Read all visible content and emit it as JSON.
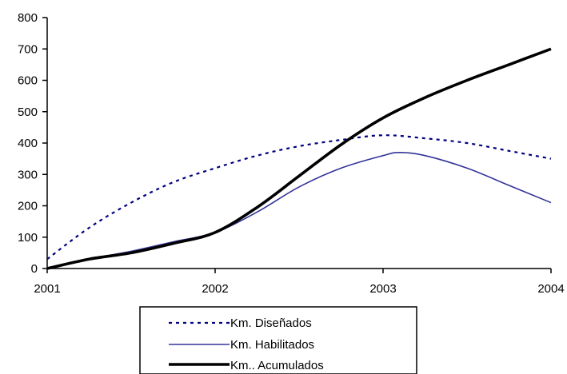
{
  "chart_data": {
    "type": "line",
    "title": "",
    "xlabel": "",
    "ylabel": "",
    "xlim": [
      2001,
      2004
    ],
    "ylim": [
      0,
      800
    ],
    "x_ticks": [
      "2001",
      "2002",
      "2003",
      "2004"
    ],
    "y_ticks": [
      "0",
      "100",
      "200",
      "300",
      "400",
      "500",
      "600",
      "700",
      "800"
    ],
    "grid": false,
    "legend_position": "bottom-center",
    "series": [
      {
        "name": "Km. Diseñados",
        "color": "#000080",
        "style": "dotted",
        "x": [
          2001.0,
          2001.25,
          2001.5,
          2001.75,
          2002.0,
          2002.25,
          2002.5,
          2002.75,
          2003.0,
          2003.25,
          2003.5,
          2003.75,
          2004.0
        ],
        "y": [
          30,
          130,
          210,
          275,
          320,
          360,
          390,
          410,
          425,
          415,
          400,
          375,
          350
        ]
      },
      {
        "name": "Km. Habilitados",
        "color": "#333399",
        "style": "solid",
        "x": [
          2001.0,
          2001.25,
          2001.5,
          2001.75,
          2002.0,
          2002.25,
          2002.5,
          2002.75,
          2003.0,
          2003.1,
          2003.25,
          2003.5,
          2003.75,
          2004.0
        ],
        "y": [
          0,
          30,
          55,
          85,
          115,
          180,
          260,
          320,
          360,
          370,
          360,
          320,
          265,
          210
        ]
      },
      {
        "name": "Km.. Acumulados",
        "color": "#000000",
        "style": "solid-thick",
        "x": [
          2001.0,
          2001.25,
          2001.5,
          2001.75,
          2002.0,
          2002.25,
          2002.5,
          2002.75,
          2003.0,
          2003.25,
          2003.5,
          2003.75,
          2004.0
        ],
        "y": [
          0,
          30,
          50,
          80,
          115,
          195,
          295,
          395,
          480,
          545,
          600,
          650,
          700
        ]
      }
    ]
  }
}
